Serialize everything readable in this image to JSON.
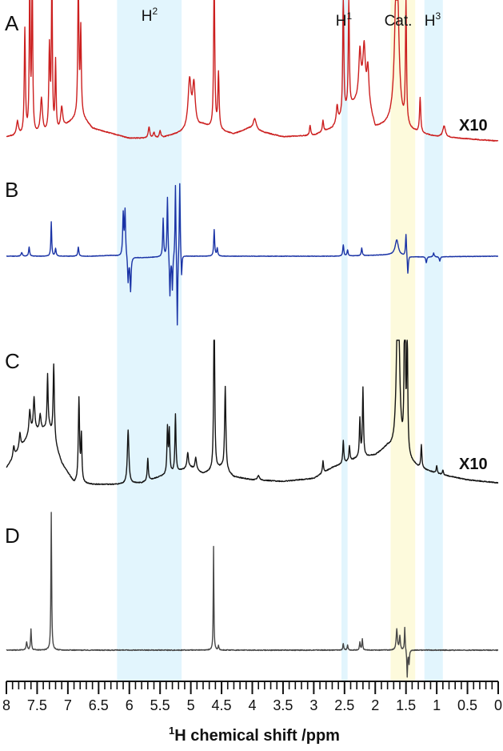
{
  "chart_data": {
    "type": "line",
    "title": "",
    "xlabel_sup": "1",
    "xlabel_main": "H chemical shift /ppm",
    "xlim": [
      8,
      0
    ],
    "x_reversed": true,
    "ticks": [
      "8",
      "7.5",
      "7",
      "6.5",
      "6",
      "5.5",
      "5",
      "4.5",
      "4",
      "3.5",
      "3",
      "2.5",
      "2",
      "1.5",
      "1",
      "0.5",
      "0"
    ],
    "tick_values": [
      8,
      7.5,
      7,
      6.5,
      6,
      5.5,
      5,
      4.5,
      4,
      3.5,
      3,
      2.5,
      2,
      1.5,
      1,
      0.5,
      0
    ],
    "regions": [
      {
        "label": "H",
        "sup": "2",
        "from": 6.2,
        "to": 5.15,
        "color": "#e2f5fd"
      },
      {
        "label": "H",
        "sup": "1",
        "from": 2.55,
        "to": 2.45,
        "color": "#e2f5fd"
      },
      {
        "label": "Cat.",
        "sup": "",
        "from": 1.75,
        "to": 1.35,
        "color": "#fdfadc"
      },
      {
        "label": "H",
        "sup": "3",
        "from": 1.2,
        "to": 0.9,
        "color": "#e2f5fd"
      }
    ],
    "series": [
      {
        "panel": "A",
        "color": "#cc1f1f",
        "scale_label": "X10",
        "baseline": [
          [
            8,
            0.04
          ],
          [
            7.2,
            0.06
          ],
          [
            6.8,
            0.2
          ],
          [
            6.6,
            0.1
          ],
          [
            6,
            0.03
          ],
          [
            5.5,
            0.03
          ],
          [
            5.05,
            0.08
          ],
          [
            4.8,
            0.12
          ],
          [
            4.5,
            0.08
          ],
          [
            4.3,
            0.06
          ],
          [
            4.05,
            0.1
          ],
          [
            3.8,
            0.07
          ],
          [
            3.5,
            0.04
          ],
          [
            3,
            0.05
          ],
          [
            2.7,
            0.1
          ],
          [
            2.3,
            0.3
          ],
          [
            2.2,
            0.4
          ],
          [
            2,
            0.1
          ],
          [
            1.75,
            0.12
          ],
          [
            1.3,
            0.06
          ],
          [
            1,
            0.04
          ],
          [
            0,
            0.01
          ]
        ],
        "peaks": [
          [
            7.82,
            0.1,
            0.02
          ],
          [
            7.7,
            0.75,
            0.011
          ],
          [
            7.62,
            1.2,
            0.009
          ],
          [
            7.58,
            1.2,
            0.009
          ],
          [
            7.43,
            0.25,
            0.02
          ],
          [
            7.3,
            0.6,
            0.012
          ],
          [
            7.26,
            1.2,
            0.009
          ],
          [
            7.2,
            0.5,
            0.01
          ],
          [
            7.1,
            0.15,
            0.02
          ],
          [
            6.83,
            1.2,
            0.009
          ],
          [
            6.79,
            0.6,
            0.01
          ],
          [
            5.68,
            0.08,
            0.015
          ],
          [
            5.6,
            0.04,
            0.015
          ],
          [
            5.5,
            0.05,
            0.015
          ],
          [
            5.02,
            0.35,
            0.03
          ],
          [
            4.95,
            0.3,
            0.025
          ],
          [
            4.62,
            1.2,
            0.01
          ],
          [
            4.55,
            0.4,
            0.012
          ],
          [
            3.96,
            0.08,
            0.03
          ],
          [
            3.06,
            0.07,
            0.012
          ],
          [
            2.85,
            0.08,
            0.012
          ],
          [
            2.62,
            0.12,
            0.015
          ],
          [
            2.52,
            0.9,
            0.01
          ],
          [
            2.43,
            0.8,
            0.01
          ],
          [
            2.25,
            0.3,
            0.02
          ],
          [
            2.18,
            0.3,
            0.02
          ],
          [
            2.12,
            0.25,
            0.02
          ],
          [
            1.65,
            1.3,
            0.035
          ],
          [
            1.5,
            0.9,
            0.01
          ],
          [
            1.27,
            0.25,
            0.012
          ],
          [
            0.88,
            0.08,
            0.025
          ]
        ]
      },
      {
        "panel": "B",
        "color": "#1a33a6",
        "scale_label": "",
        "baseline": [
          [
            8,
            0
          ],
          [
            6.6,
            0
          ],
          [
            6.3,
            0.01
          ],
          [
            5.8,
            -0.02
          ],
          [
            5.2,
            0
          ],
          [
            2.5,
            0
          ],
          [
            1.7,
            0.02
          ],
          [
            1.4,
            -0.01
          ],
          [
            0,
            0
          ]
        ],
        "peaks": [
          [
            7.75,
            0.05,
            0.012
          ],
          [
            7.63,
            0.12,
            0.01
          ],
          [
            7.27,
            0.45,
            0.008
          ],
          [
            7.2,
            0.1,
            0.01
          ],
          [
            6.83,
            0.12,
            0.01
          ],
          [
            6.1,
            0.55,
            0.01
          ],
          [
            6.07,
            0.6,
            0.01
          ],
          [
            6.02,
            -0.35,
            0.01
          ],
          [
            5.98,
            -0.45,
            0.01
          ],
          [
            5.45,
            0.5,
            0.009
          ],
          [
            5.38,
            0.8,
            0.009
          ],
          [
            5.34,
            -0.55,
            0.009
          ],
          [
            5.3,
            -0.45,
            0.008
          ],
          [
            5.25,
            1.0,
            0.008
          ],
          [
            5.22,
            -1.0,
            0.008
          ],
          [
            5.18,
            1.0,
            0.008
          ],
          [
            5.15,
            -0.3,
            0.008
          ],
          [
            4.62,
            0.35,
            0.009
          ],
          [
            4.57,
            0.1,
            0.01
          ],
          [
            2.52,
            0.15,
            0.01
          ],
          [
            2.45,
            0.08,
            0.01
          ],
          [
            2.22,
            0.1,
            0.01
          ],
          [
            1.65,
            0.2,
            0.03
          ],
          [
            1.5,
            0.3,
            0.009
          ],
          [
            1.47,
            -0.25,
            0.009
          ],
          [
            1.17,
            -0.08,
            0.01
          ],
          [
            1.05,
            0.05,
            0.01
          ],
          [
            0.95,
            -0.06,
            0.01
          ]
        ]
      },
      {
        "panel": "C",
        "color": "#141414",
        "scale_label": "X10",
        "baseline": [
          [
            8,
            0.12
          ],
          [
            7.6,
            0.35
          ],
          [
            7.3,
            0.38
          ],
          [
            7.1,
            0.15
          ],
          [
            6.9,
            0.02
          ],
          [
            6.6,
            0.01
          ],
          [
            6.2,
            0.01
          ],
          [
            5.8,
            0.02
          ],
          [
            5.5,
            0.06
          ],
          [
            5,
            0.12
          ],
          [
            4.8,
            0.08
          ],
          [
            4.5,
            0.12
          ],
          [
            4.3,
            0.06
          ],
          [
            4,
            0.04
          ],
          [
            3.5,
            0.03
          ],
          [
            3,
            0.05
          ],
          [
            2.7,
            0.12
          ],
          [
            2.3,
            0.18
          ],
          [
            2,
            0.2
          ],
          [
            1.8,
            0.25
          ],
          [
            1.3,
            0.12
          ],
          [
            1,
            0.08
          ],
          [
            0.5,
            0.04
          ],
          [
            0,
            0.02
          ]
        ],
        "peaks": [
          [
            7.88,
            0.07,
            0.015
          ],
          [
            7.78,
            0.1,
            0.015
          ],
          [
            7.62,
            0.15,
            0.015
          ],
          [
            7.55,
            0.22,
            0.015
          ],
          [
            7.45,
            0.1,
            0.015
          ],
          [
            7.33,
            0.35,
            0.01
          ],
          [
            7.23,
            0.5,
            0.012
          ],
          [
            6.82,
            0.55,
            0.012
          ],
          [
            6.78,
            0.3,
            0.01
          ],
          [
            6.02,
            0.35,
            0.015
          ],
          [
            5.7,
            0.15,
            0.01
          ],
          [
            5.38,
            0.3,
            0.01
          ],
          [
            5.35,
            0.28,
            0.01
          ],
          [
            5.25,
            0.38,
            0.01
          ],
          [
            5.05,
            0.1,
            0.015
          ],
          [
            4.92,
            0.08,
            0.015
          ],
          [
            4.62,
            1.3,
            0.009
          ],
          [
            4.44,
            0.55,
            0.012
          ],
          [
            3.9,
            0.03,
            0.02
          ],
          [
            2.85,
            0.08,
            0.01
          ],
          [
            2.52,
            0.15,
            0.01
          ],
          [
            2.42,
            0.1,
            0.01
          ],
          [
            2.25,
            0.25,
            0.01
          ],
          [
            2.2,
            0.45,
            0.01
          ],
          [
            1.63,
            1.3,
            0.025
          ],
          [
            1.52,
            1.3,
            0.01
          ],
          [
            1.48,
            0.8,
            0.01
          ],
          [
            1.25,
            0.15,
            0.01
          ],
          [
            1.0,
            0.05,
            0.01
          ],
          [
            0.9,
            0.03,
            0.01
          ]
        ]
      },
      {
        "panel": "D",
        "color": "#474747",
        "scale_label": "",
        "baseline": [
          [
            8,
            0
          ],
          [
            0,
            0
          ]
        ],
        "peaks": [
          [
            7.67,
            0.06,
            0.01
          ],
          [
            7.6,
            0.15,
            0.008
          ],
          [
            7.27,
            1.0,
            0.007
          ],
          [
            4.63,
            0.75,
            0.006
          ],
          [
            4.55,
            0.03,
            0.008
          ],
          [
            2.52,
            0.05,
            0.008
          ],
          [
            2.45,
            0.04,
            0.008
          ],
          [
            2.25,
            0.06,
            0.008
          ],
          [
            2.21,
            0.08,
            0.008
          ],
          [
            1.65,
            0.15,
            0.012
          ],
          [
            1.6,
            0.1,
            0.01
          ],
          [
            1.52,
            0.17,
            0.007
          ],
          [
            1.48,
            -0.2,
            0.007
          ],
          [
            1.45,
            -0.1,
            0.007
          ]
        ]
      }
    ]
  }
}
